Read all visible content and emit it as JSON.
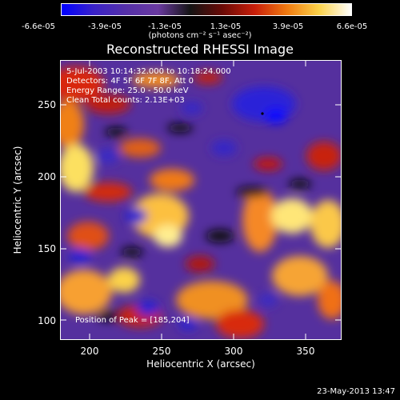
{
  "colorbar": {
    "ticks": [
      "-6.6e-05",
      "-3.9e-05",
      "-1.3e-05",
      "1.3e-05",
      "3.9e-05",
      "6.6e-05"
    ],
    "units": "(photons cm⁻² s⁻¹ asec⁻²)",
    "colors": [
      "#0000ff",
      "#3a22c8",
      "#5530a8",
      "#6a3aa0",
      "#141414",
      "#6a0a06",
      "#c81e0a",
      "#f07a10",
      "#fbd24a",
      "#ffffff"
    ]
  },
  "title": "Reconstructed RHESSI Image",
  "info": {
    "time": "5-Jul-2003 10:14:32.000 to 10:18:24.000",
    "detectors": "Detectors: 4F 5F 6F 7F 8F, Att 0",
    "energy": "Energy Range: 25.0 - 50.0 keV",
    "clean": "Clean     Total counts: 2.13E+03",
    "peak": "Position of Peak = [185,204]"
  },
  "axes": {
    "xlabel": "Heliocentric X (arcsec)",
    "ylabel": "Heliocentric Y (arcsec)",
    "xticks": [
      "200",
      "250",
      "300",
      "350"
    ],
    "yticks": [
      "100",
      "150",
      "200",
      "250"
    ],
    "xlim": [
      180,
      375
    ],
    "ylim": [
      90,
      285
    ]
  },
  "timestamp": "23-May-2013 13:47"
}
